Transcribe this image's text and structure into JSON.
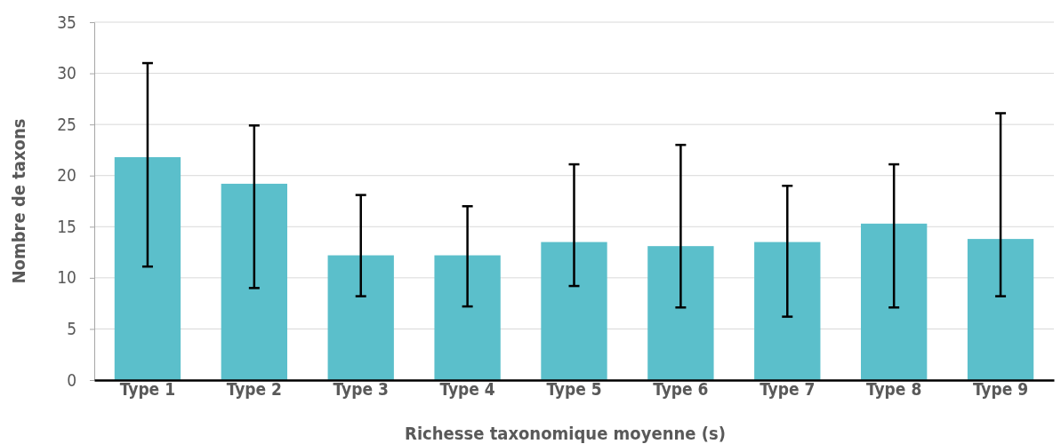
{
  "chart_data": {
    "type": "bar",
    "xlabel": "Richesse taxonomique moyenne (s)",
    "ylabel": "Nombre de taxons",
    "categories": [
      "Type 1",
      "Type 2",
      "Type 3",
      "Type 4",
      "Type 5",
      "Type 6",
      "Type 7",
      "Type 8",
      "Type 9"
    ],
    "values": [
      21.8,
      19.2,
      12.2,
      12.2,
      13.5,
      13.1,
      13.5,
      15.3,
      13.8
    ],
    "errors": [
      [
        11.1,
        31
      ],
      [
        9,
        24.9
      ],
      [
        8.2,
        18.1
      ],
      [
        7.2,
        17
      ],
      [
        9.2,
        21.1
      ],
      [
        7.1,
        23
      ],
      [
        6.2,
        19
      ],
      [
        7.1,
        21.1
      ],
      [
        8.2,
        26.1
      ]
    ],
    "color": "#5bbfcb",
    "ylim": [
      0,
      35
    ],
    "yticks": [
      0,
      5,
      10,
      15,
      20,
      25,
      30,
      35
    ],
    "grid": "y"
  }
}
